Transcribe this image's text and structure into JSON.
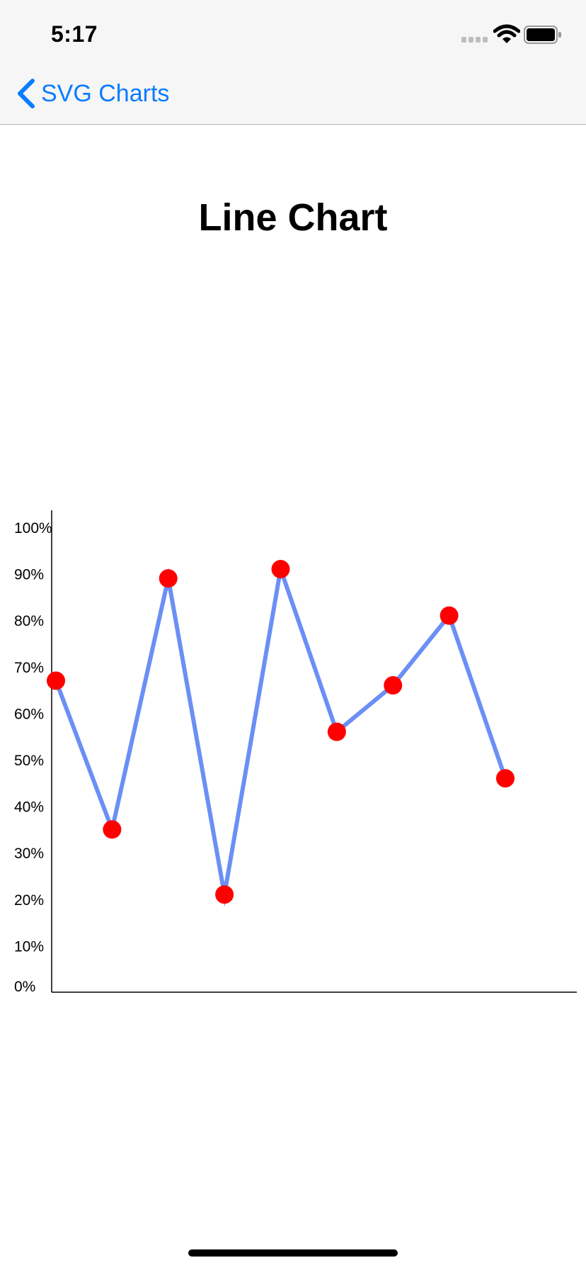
{
  "status_bar": {
    "time": "5:17",
    "icons": [
      "cellular-signal-icon",
      "wifi-icon",
      "battery-icon"
    ]
  },
  "nav_bar": {
    "back_label": "SVG Charts",
    "back_icon": "chevron-left-icon",
    "accent_color": "#0a7cff"
  },
  "page": {
    "title": "Line Chart"
  },
  "chart_data": {
    "type": "line",
    "title": "",
    "xlabel": "",
    "ylabel": "",
    "x": [
      1,
      2,
      3,
      4,
      5,
      6,
      7,
      8,
      9
    ],
    "series": [
      {
        "values": [
          67,
          35,
          89,
          21,
          91,
          56,
          66,
          81,
          46
        ]
      }
    ],
    "ylim": [
      0,
      100
    ],
    "y_ticks": [
      "0%",
      "10%",
      "20%",
      "30%",
      "40%",
      "50%",
      "60%",
      "70%",
      "80%",
      "90%",
      "100%"
    ],
    "grid": false,
    "legend": "none",
    "line_color": "#6b8ff5",
    "point_color": "#ff0000"
  }
}
